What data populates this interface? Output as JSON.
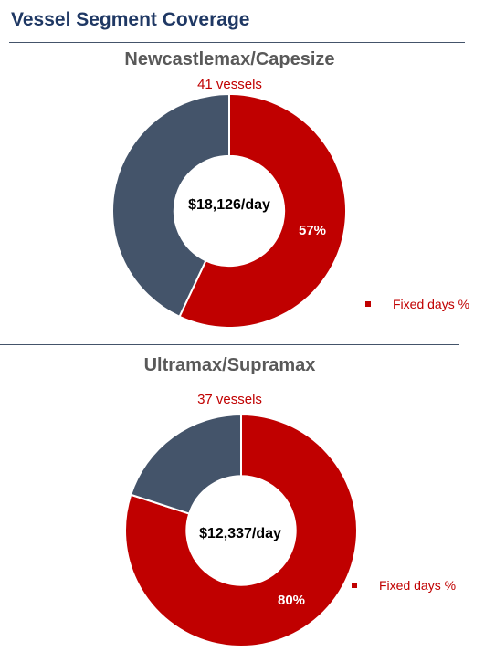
{
  "page_title": "Vessel Segment Coverage",
  "colors": {
    "fixed": "#c00000",
    "open": "#44546a",
    "title": "#1f3864"
  },
  "chart_data": [
    {
      "type": "pie",
      "title": "Newcastlemax/Capesize",
      "subtitle": "41 vessels",
      "center_label": "$18,126/day",
      "slices": [
        {
          "name": "Fixed days %",
          "value": 57,
          "label": "57%"
        },
        {
          "name": "",
          "value": 43,
          "label": ""
        }
      ],
      "legend": [
        "Fixed days %"
      ],
      "legend_position": "right"
    },
    {
      "type": "pie",
      "title": "Ultramax/Supramax",
      "subtitle": "37 vessels",
      "center_label": "$12,337/day",
      "slices": [
        {
          "name": "Fixed days %",
          "value": 80,
          "label": "80%"
        },
        {
          "name": "",
          "value": 20,
          "label": ""
        }
      ],
      "legend": [
        "Fixed days %"
      ],
      "legend_position": "right"
    }
  ]
}
